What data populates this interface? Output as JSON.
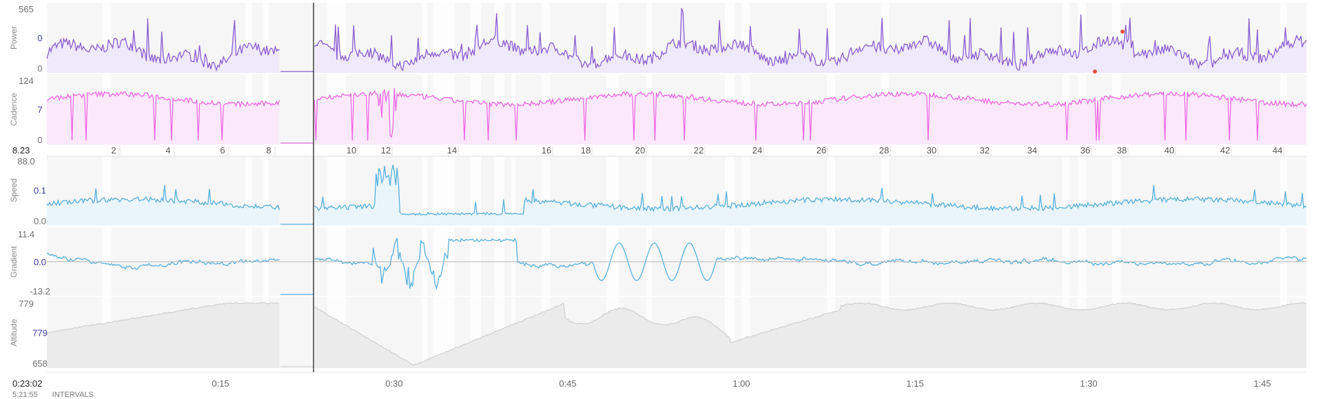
{
  "panels": [
    {
      "id": "power",
      "title": "Power",
      "top_label": "565",
      "mid_label": "0",
      "bottom_label": "0",
      "color": "#8a5cd0",
      "fill": "#efe9fb"
    },
    {
      "id": "cadence",
      "title": "Cadence",
      "top_label": "124",
      "mid_label": "7",
      "bottom_label": "0",
      "color": "#ee66e4",
      "fill": "#fbe8fa"
    },
    {
      "id": "speed",
      "title": "Speed",
      "top_label": "88.0",
      "mid_label": "0.1",
      "bottom_label": "0.0",
      "color": "#55b0dc",
      "fill": "#eaf5fb"
    },
    {
      "id": "gradient",
      "title": "Gradient",
      "top_label": "11.4",
      "mid_label": "0.0",
      "bottom_label": "-13.2",
      "color": "#55b0dc",
      "fill": "none"
    },
    {
      "id": "altitude",
      "title": "Altitude",
      "top_label": "779",
      "mid_label": "779",
      "bottom_label": "658",
      "color": "#cfcfcf",
      "fill": "#ebebeb"
    }
  ],
  "distance_strip": {
    "left_value": "8.23",
    "ticks": [
      "2",
      "4",
      "6",
      "8",
      "10",
      "12",
      "14",
      "16",
      "18",
      "20",
      "22",
      "24",
      "26",
      "28",
      "30",
      "32",
      "34",
      "36",
      "38",
      "40",
      "42",
      "44"
    ]
  },
  "time_axis": {
    "cursor_time": "0:23:02",
    "ticks": [
      "0:15",
      "0:30",
      "0:45",
      "1:00",
      "1:15",
      "1:30",
      "1:45"
    ]
  },
  "footer": {
    "total_time": "5:21:55",
    "intervals_label": "INTERVALS"
  }
}
